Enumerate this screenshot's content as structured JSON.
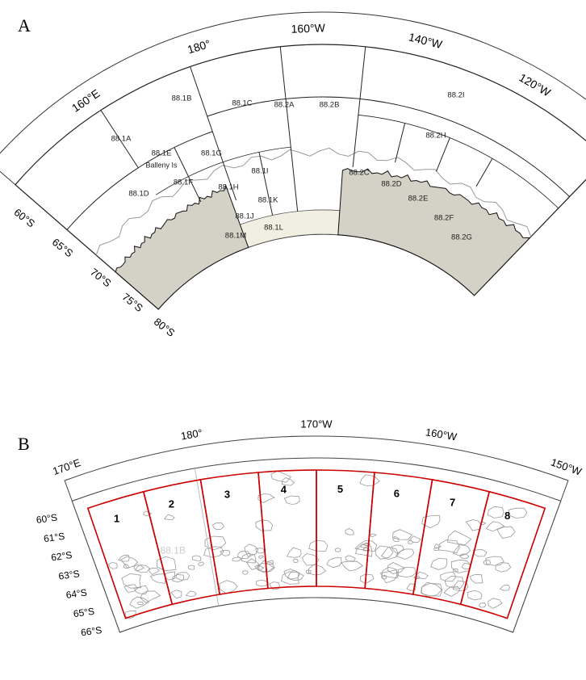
{
  "panel_a": {
    "label": "A",
    "longitudes": [
      "160°E",
      "180°",
      "160°W",
      "140°W",
      "120°W"
    ],
    "latitudes": [
      "60°S",
      "65°S",
      "70°S",
      "75°S",
      "80°S"
    ],
    "regions": [
      "88.1A",
      "88.1B",
      "88.1C",
      "88.2A",
      "88.2B",
      "88.2I",
      "88.2H",
      "88.1E",
      "88.1G",
      "88.1F",
      "88.1I",
      "88.1D",
      "88.1H",
      "88.1J",
      "88.1K",
      "88.1L",
      "88.1M",
      "88.2C",
      "88.2D",
      "88.2E",
      "88.2F",
      "88.2G"
    ],
    "island": "Balleny Is"
  },
  "panel_b": {
    "label": "B",
    "longitudes": [
      "170°E",
      "180°",
      "170°W",
      "160°W",
      "150°W"
    ],
    "latitudes": [
      "60°S",
      "61°S",
      "62°S",
      "63°S",
      "64°S",
      "65°S",
      "66°S"
    ],
    "boxes": [
      "1",
      "2",
      "3",
      "4",
      "5",
      "6",
      "7",
      "8"
    ],
    "background_label": "88.1B"
  }
}
